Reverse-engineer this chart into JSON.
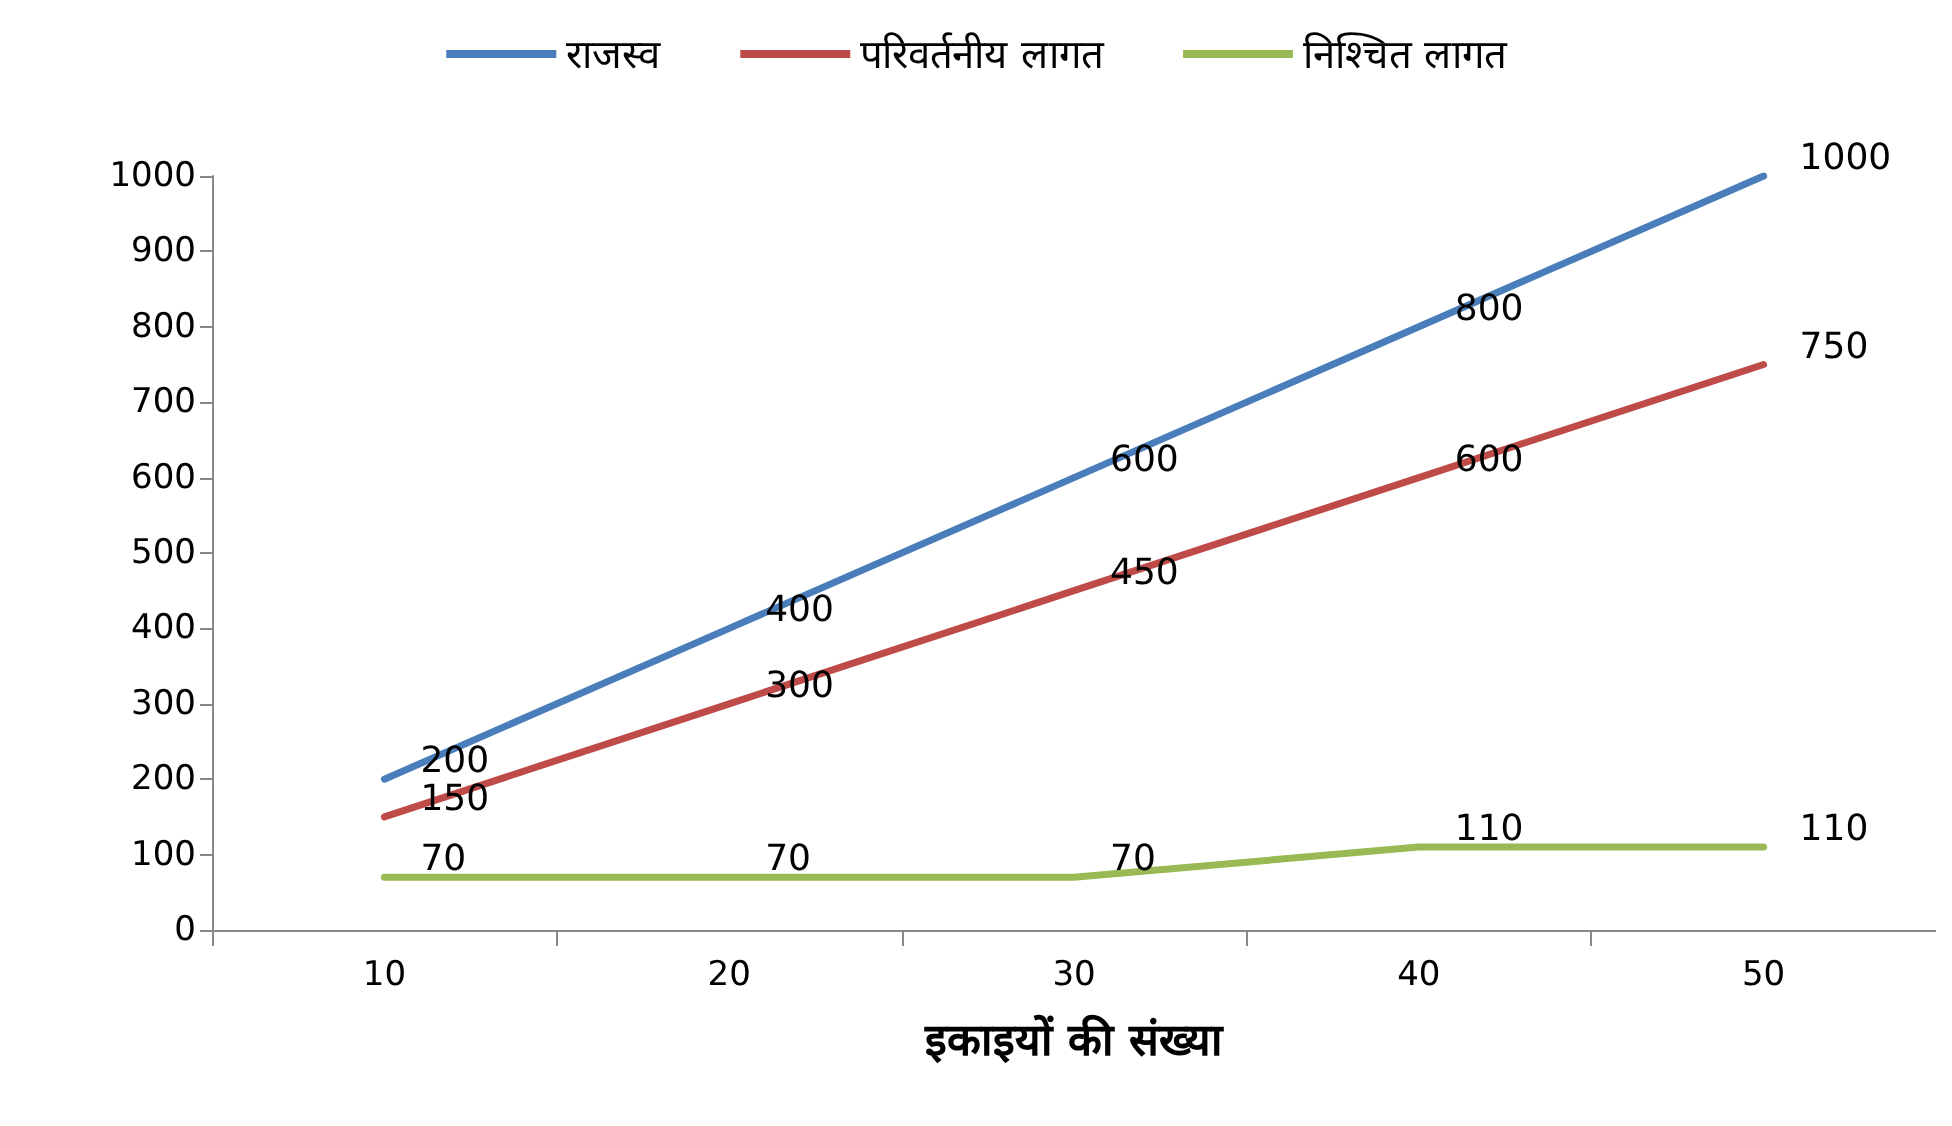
{
  "chart_data": {
    "type": "line",
    "xlabel": "इकाइयों की संख्या",
    "categories": [
      "10",
      "20",
      "30",
      "40",
      "50"
    ],
    "series": [
      {
        "name": "राजस्व",
        "color": "#4a7ebb",
        "values": [
          200,
          400,
          600,
          800,
          1000
        ]
      },
      {
        "name": "परिवर्तनीय लागत",
        "color": "#be4b48",
        "values": [
          150,
          300,
          450,
          600,
          750
        ]
      },
      {
        "name": "निश्चित लागत",
        "color": "#98b954",
        "values": [
          70,
          70,
          70,
          110,
          110
        ]
      }
    ],
    "ylim": [
      0,
      1000
    ],
    "yticks": [
      0,
      100,
      200,
      300,
      400,
      500,
      600,
      700,
      800,
      900,
      1000
    ],
    "grid": false,
    "legend": "top",
    "marker": "none",
    "line_style": "solid",
    "data_labels": true
  }
}
